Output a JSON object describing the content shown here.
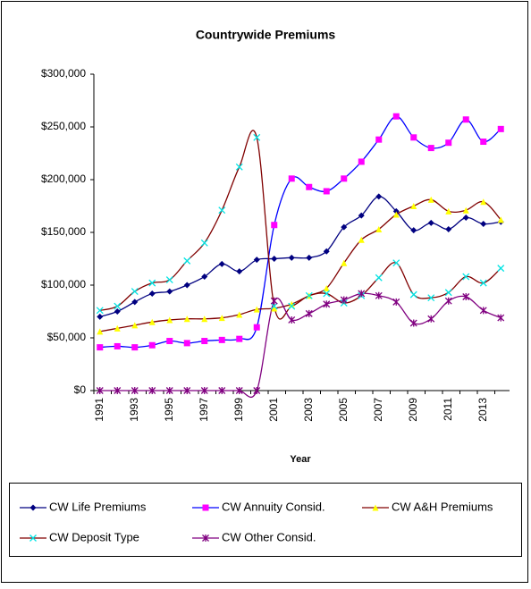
{
  "chart_data": {
    "type": "line",
    "title": "Countrywide Premiums",
    "x_label": "Year",
    "categories": [
      "1991",
      null,
      "1993",
      null,
      "1995",
      null,
      "1997",
      null,
      "1999",
      null,
      "2001",
      null,
      "2003",
      null,
      "2005",
      null,
      "2007",
      null,
      "2009",
      null,
      "2011",
      null,
      "2013",
      null
    ],
    "ylim": [
      0,
      300000
    ],
    "yticks": [
      {
        "value": 0,
        "label": "$0"
      },
      {
        "value": 50000,
        "label": "$50,000"
      },
      {
        "value": 100000,
        "label": "$100,000"
      },
      {
        "value": 150000,
        "label": "$150,000"
      },
      {
        "value": 200000,
        "label": "$200,000"
      },
      {
        "value": 250000,
        "label": "$250,000"
      },
      {
        "value": 300000,
        "label": "$300,000"
      }
    ],
    "grid": false,
    "smooth": true,
    "legend": "bottom",
    "series": [
      {
        "name": "CW Life Premiums",
        "color": "#000080",
        "marker_color": "#000080",
        "marker": "diamond",
        "values": [
          70000,
          75000,
          84000,
          92000,
          94000,
          100000,
          108000,
          120000,
          113000,
          124000,
          125000,
          126000,
          126000,
          132000,
          155000,
          166000,
          184000,
          170000,
          152000,
          159000,
          153000,
          164000,
          158000,
          160000
        ]
      },
      {
        "name": "CW Annuity Consid.",
        "color": "#0000ff",
        "marker_color": "#ff00ff",
        "marker": "square",
        "values": [
          41000,
          42000,
          41000,
          43000,
          47000,
          45000,
          47000,
          48000,
          49000,
          60000,
          157000,
          201000,
          193000,
          189000,
          201000,
          217000,
          238000,
          260000,
          240000,
          230000,
          235000,
          257000,
          236000,
          248000
        ]
      },
      {
        "name": "CW A&H Premiums",
        "color": "#800000",
        "marker_color": "#ffff00",
        "marker": "triangle",
        "values": [
          56000,
          59000,
          62000,
          65000,
          67000,
          68000,
          68000,
          69000,
          72000,
          77000,
          78000,
          82000,
          90000,
          97000,
          121000,
          143000,
          153000,
          167000,
          175000,
          181000,
          170000,
          171000,
          179000,
          162000
        ]
      },
      {
        "name": "CW Deposit Type",
        "color": "#800000",
        "marker_color": "#00e5e5",
        "marker": "x",
        "values": [
          76000,
          80000,
          94000,
          102000,
          105000,
          123000,
          140000,
          171000,
          212000,
          240000,
          80000,
          80000,
          90000,
          92000,
          83000,
          90000,
          107000,
          121000,
          91000,
          88000,
          93000,
          108000,
          102000,
          116000
        ]
      },
      {
        "name": "CW Other Consid.",
        "color": "#800080",
        "marker_color": "#800080",
        "marker": "star",
        "values": [
          0,
          0,
          0,
          0,
          0,
          0,
          0,
          0,
          0,
          0,
          85000,
          67000,
          73000,
          82000,
          86000,
          92000,
          90000,
          84000,
          64000,
          68000,
          85000,
          89000,
          76000,
          69000
        ]
      }
    ]
  }
}
